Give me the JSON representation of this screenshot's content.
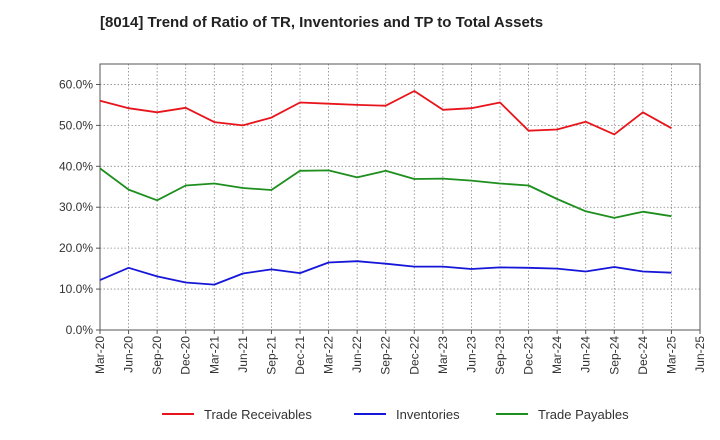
{
  "chart_data": {
    "type": "line",
    "title": "[8014]  Trend of Ratio of TR, Inventories and TP to Total Assets",
    "xlabel": "",
    "ylabel": "",
    "ylim": [
      0,
      65
    ],
    "yticks": [
      0,
      10,
      20,
      30,
      40,
      50,
      60
    ],
    "y_tick_format": "{v}.0%",
    "x_ticks": [
      "Mar-20",
      "Jun-20",
      "Sep-20",
      "Dec-20",
      "Mar-21",
      "Jun-21",
      "Sep-21",
      "Dec-21",
      "Mar-22",
      "Jun-22",
      "Sep-22",
      "Dec-22",
      "Mar-23",
      "Jun-23",
      "Sep-23",
      "Dec-23",
      "Mar-24",
      "Jun-24",
      "Sep-24",
      "Dec-24",
      "Mar-25",
      "Jun-25"
    ],
    "x": [
      "Mar-20",
      "Jun-20",
      "Sep-20",
      "Dec-20",
      "Mar-21",
      "Jun-21",
      "Sep-21",
      "Dec-21",
      "Mar-22",
      "Jun-22",
      "Sep-22",
      "Dec-22",
      "Mar-23",
      "Jun-23",
      "Sep-23",
      "Dec-23",
      "Mar-24",
      "Jun-24",
      "Sep-24",
      "Dec-24",
      "Mar-25"
    ],
    "grid": true,
    "legend_position": "bottom",
    "series": [
      {
        "name": "Trade Receivables",
        "color": "#e8141b",
        "values": [
          56.0,
          54.2,
          53.2,
          54.3,
          50.8,
          50.0,
          51.9,
          55.6,
          55.3,
          55.0,
          54.8,
          58.4,
          53.8,
          54.2,
          55.6,
          48.7,
          49.0,
          50.9,
          47.8,
          53.2,
          49.3
        ]
      },
      {
        "name": "Inventories",
        "color": "#1616d8",
        "values": [
          12.2,
          15.2,
          13.1,
          11.6,
          11.1,
          13.8,
          14.8,
          13.9,
          16.5,
          16.8,
          16.2,
          15.5,
          15.5,
          14.9,
          15.3,
          15.2,
          15.0,
          14.3,
          15.4,
          14.3,
          14.0
        ]
      },
      {
        "name": "Trade Payables",
        "color": "#1e8f1e",
        "values": [
          39.5,
          34.3,
          31.7,
          35.3,
          35.8,
          34.7,
          34.2,
          38.9,
          39.0,
          37.3,
          38.9,
          36.9,
          37.0,
          36.5,
          35.8,
          35.3,
          32.0,
          29.0,
          27.4,
          28.9,
          27.8
        ]
      }
    ]
  }
}
